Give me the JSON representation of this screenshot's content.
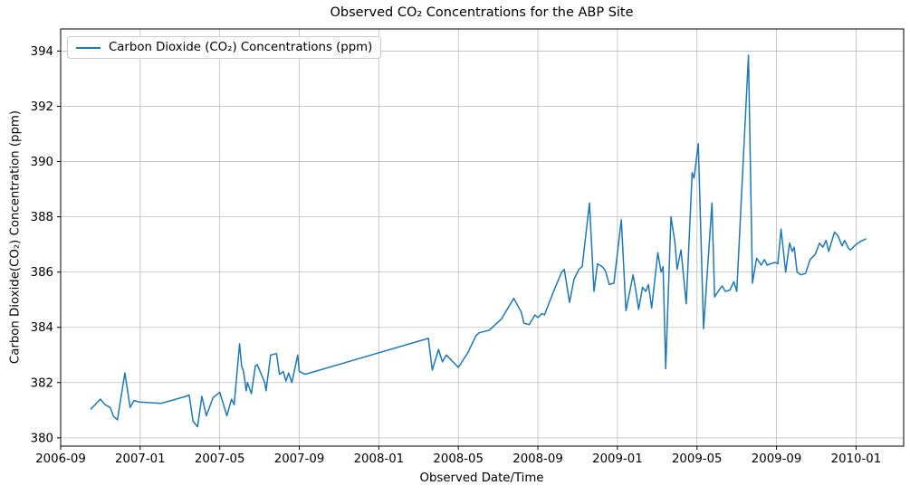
{
  "colors": {
    "line": "#1f77b4",
    "grid": "#bdbdbd",
    "spine": "#000000",
    "background": "#ffffff",
    "legend_border": "#cccccc"
  },
  "chart_data": {
    "type": "line",
    "title": "Observed CO₂ Concentrations for the ABP Site",
    "xlabel": "Observed Date/Time",
    "ylabel": "Carbon Dioxide(CO₂) Concentration (ppm)",
    "grid": true,
    "legend": {
      "position": "upper-left",
      "entries": [
        {
          "label": "Carbon Dioxide (CO₂) Concentrations (ppm)",
          "color": "#1f77b4"
        }
      ]
    },
    "x_ticks": [
      "2006-09",
      "2007-01",
      "2007-05",
      "2007-09",
      "2008-01",
      "2008-05",
      "2008-09",
      "2009-01",
      "2009-05",
      "2009-09",
      "2010-01"
    ],
    "y_ticks": [
      380,
      382,
      384,
      386,
      388,
      390,
      392,
      394
    ],
    "xlim": [
      "2006-09-01",
      "2010-03-13"
    ],
    "ylim": [
      379.7,
      394.8
    ],
    "series": [
      {
        "name": "Carbon Dioxide (CO₂) Concentrations (ppm)",
        "color": "#1f77b4",
        "points": [
          [
            "2006-10-17",
            381.05
          ],
          [
            "2006-11-01",
            381.4
          ],
          [
            "2006-11-08",
            381.2
          ],
          [
            "2006-11-16",
            381.1
          ],
          [
            "2006-11-21",
            380.78
          ],
          [
            "2006-11-27",
            380.65
          ],
          [
            "2006-12-08",
            382.35
          ],
          [
            "2006-12-16",
            381.1
          ],
          [
            "2006-12-22",
            381.35
          ],
          [
            "2006-12-30",
            381.3
          ],
          [
            "2007-02-03",
            381.25
          ],
          [
            "2007-03-10",
            381.5
          ],
          [
            "2007-03-15",
            381.55
          ],
          [
            "2007-03-21",
            380.6
          ],
          [
            "2007-03-28",
            380.4
          ],
          [
            "2007-04-04",
            381.5
          ],
          [
            "2007-04-11",
            380.8
          ],
          [
            "2007-04-21",
            381.45
          ],
          [
            "2007-05-01",
            381.65
          ],
          [
            "2007-05-12",
            380.8
          ],
          [
            "2007-05-19",
            381.4
          ],
          [
            "2007-05-23",
            381.2
          ],
          [
            "2007-06-01",
            383.4
          ],
          [
            "2007-06-04",
            382.6
          ],
          [
            "2007-06-07",
            382.4
          ],
          [
            "2007-06-11",
            381.7
          ],
          [
            "2007-06-13",
            382.0
          ],
          [
            "2007-06-19",
            381.6
          ],
          [
            "2007-06-25",
            382.6
          ],
          [
            "2007-06-28",
            382.65
          ],
          [
            "2007-07-02",
            382.4
          ],
          [
            "2007-07-09",
            382.0
          ],
          [
            "2007-07-11",
            381.7
          ],
          [
            "2007-07-18",
            383.0
          ],
          [
            "2007-07-27",
            383.05
          ],
          [
            "2007-08-01",
            382.3
          ],
          [
            "2007-08-07",
            382.4
          ],
          [
            "2007-08-11",
            382.05
          ],
          [
            "2007-08-15",
            382.35
          ],
          [
            "2007-08-20",
            382.0
          ],
          [
            "2007-08-29",
            383.0
          ],
          [
            "2007-09-01",
            382.4
          ],
          [
            "2007-09-10",
            382.3
          ],
          [
            "2008-03-16",
            383.6
          ],
          [
            "2008-03-22",
            382.45
          ],
          [
            "2008-04-01",
            383.2
          ],
          [
            "2008-04-07",
            382.75
          ],
          [
            "2008-04-13",
            383.0
          ],
          [
            "2008-05-01",
            382.55
          ],
          [
            "2008-05-16",
            383.1
          ],
          [
            "2008-05-28",
            383.7
          ],
          [
            "2008-06-02",
            383.8
          ],
          [
            "2008-06-18",
            383.9
          ],
          [
            "2008-07-06",
            384.3
          ],
          [
            "2008-07-25",
            385.05
          ],
          [
            "2008-08-06",
            384.55
          ],
          [
            "2008-08-10",
            384.15
          ],
          [
            "2008-08-18",
            384.1
          ],
          [
            "2008-08-27",
            384.45
          ],
          [
            "2008-09-01",
            384.35
          ],
          [
            "2008-09-07",
            384.5
          ],
          [
            "2008-09-11",
            384.45
          ],
          [
            "2008-09-25",
            385.3
          ],
          [
            "2008-10-07",
            386.0
          ],
          [
            "2008-10-11",
            386.1
          ],
          [
            "2008-10-19",
            384.9
          ],
          [
            "2008-10-26",
            385.75
          ],
          [
            "2008-11-03",
            386.1
          ],
          [
            "2008-11-08",
            386.2
          ],
          [
            "2008-11-19",
            388.5
          ],
          [
            "2008-11-26",
            385.3
          ],
          [
            "2008-12-01",
            386.3
          ],
          [
            "2008-12-08",
            386.2
          ],
          [
            "2008-12-13",
            386.05
          ],
          [
            "2008-12-19",
            385.55
          ],
          [
            "2008-12-26",
            385.6
          ],
          [
            "2009-01-07",
            387.9
          ],
          [
            "2009-01-14",
            384.6
          ],
          [
            "2009-01-25",
            385.9
          ],
          [
            "2009-01-29",
            385.35
          ],
          [
            "2009-02-03",
            384.65
          ],
          [
            "2009-02-09",
            385.45
          ],
          [
            "2009-02-14",
            385.3
          ],
          [
            "2009-02-18",
            385.55
          ],
          [
            "2009-02-23",
            384.7
          ],
          [
            "2009-03-02",
            386.7
          ],
          [
            "2009-03-07",
            386.0
          ],
          [
            "2009-03-10",
            386.2
          ],
          [
            "2009-03-14",
            382.5
          ],
          [
            "2009-03-22",
            388.0
          ],
          [
            "2009-03-28",
            387.1
          ],
          [
            "2009-04-01",
            386.1
          ],
          [
            "2009-04-07",
            386.8
          ],
          [
            "2009-04-15",
            384.85
          ],
          [
            "2009-04-24",
            389.6
          ],
          [
            "2009-04-27",
            389.4
          ],
          [
            "2009-05-03",
            390.65
          ],
          [
            "2009-05-11",
            383.95
          ],
          [
            "2009-05-24",
            388.5
          ],
          [
            "2009-05-28",
            385.1
          ],
          [
            "2009-06-03",
            385.3
          ],
          [
            "2009-06-09",
            385.5
          ],
          [
            "2009-06-14",
            385.3
          ],
          [
            "2009-06-21",
            385.35
          ],
          [
            "2009-06-27",
            385.65
          ],
          [
            "2009-07-01",
            385.3
          ],
          [
            "2009-07-19",
            393.85
          ],
          [
            "2009-07-25",
            385.6
          ],
          [
            "2009-08-01",
            386.5
          ],
          [
            "2009-08-04",
            386.4
          ],
          [
            "2009-08-08",
            386.25
          ],
          [
            "2009-08-13",
            386.45
          ],
          [
            "2009-08-17",
            386.25
          ],
          [
            "2009-08-22",
            386.3
          ],
          [
            "2009-08-29",
            386.35
          ],
          [
            "2009-09-03",
            386.3
          ],
          [
            "2009-09-08",
            387.55
          ],
          [
            "2009-09-15",
            386.0
          ],
          [
            "2009-09-21",
            387.05
          ],
          [
            "2009-09-25",
            386.75
          ],
          [
            "2009-09-28",
            386.9
          ],
          [
            "2009-10-02",
            386.0
          ],
          [
            "2009-10-08",
            385.9
          ],
          [
            "2009-10-15",
            385.95
          ],
          [
            "2009-10-22",
            386.45
          ],
          [
            "2009-10-30",
            386.65
          ],
          [
            "2009-11-06",
            387.05
          ],
          [
            "2009-11-11",
            386.9
          ],
          [
            "2009-11-16",
            387.15
          ],
          [
            "2009-11-20",
            386.75
          ],
          [
            "2009-11-29",
            387.45
          ],
          [
            "2009-12-04",
            387.3
          ],
          [
            "2009-12-10",
            386.95
          ],
          [
            "2009-12-14",
            387.15
          ],
          [
            "2009-12-20",
            386.85
          ],
          [
            "2009-12-23",
            386.8
          ],
          [
            "2010-01-01",
            387.0
          ],
          [
            "2010-01-07",
            387.1
          ],
          [
            "2010-01-16",
            387.2
          ]
        ]
      }
    ]
  }
}
